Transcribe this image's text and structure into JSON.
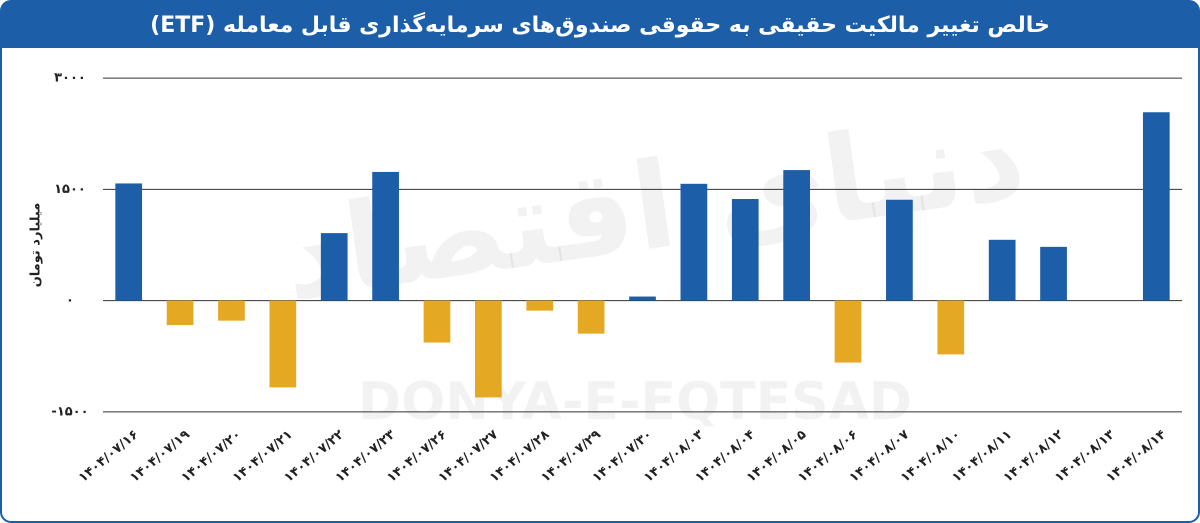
{
  "chart_data": {
    "type": "bar",
    "title": "خالص تغییر مالکیت حقیقی به حقوقی صندوق‌های سرمایه‌گذاری قابل معامله (ETF)",
    "y_label": "میلیارد تومان",
    "watermark": [
      "دنیای اقتصاد",
      "DONYA-E-EQTESAD"
    ],
    "categories": [
      "۱۴۰۴/۰۷/۱۶",
      "۱۴۰۴/۰۷/۱۹",
      "۱۴۰۴/۰۷/۲۰",
      "۱۴۰۴/۰۷/۲۱",
      "۱۴۰۴/۰۷/۲۲",
      "۱۴۰۴/۰۷/۲۳",
      "۱۴۰۴/۰۷/۲۶",
      "۱۴۰۴/۰۷/۲۷",
      "۱۴۰۴/۰۷/۲۸",
      "۱۴۰۴/۰۷/۲۹",
      "۱۴۰۴/۰۷/۳۰",
      "۱۴۰۴/۰۸/۰۳",
      "۱۴۰۴/۰۸/۰۴",
      "۱۴۰۴/۰۸/۰۵",
      "۱۴۰۴/۰۸/۰۶",
      "۱۴۰۴/۰۸/۰۷",
      "۱۴۰۴/۰۸/۱۰",
      "۱۴۰۴/۰۸/۱۱",
      "۱۴۰۴/۰۸/۱۲",
      "۱۴۰۴/۰۸/۱۳",
      "۱۴۰۴/۰۸/۱۴"
    ],
    "values": [
      1580,
      -330,
      -270,
      -1170,
      910,
      1735,
      -565,
      -1305,
      -135,
      -445,
      55,
      1575,
      1370,
      1760,
      -835,
      1360,
      -725,
      820,
      725,
      0,
      2540
    ],
    "positive_color": "#1c5ea8",
    "negative_color": "#e5a823",
    "ylim": [
      -1650,
      3150
    ],
    "yticks": [
      {
        "value": -1500,
        "label": "-۱۵۰۰"
      },
      {
        "value": 0,
        "label": "۰"
      },
      {
        "value": 1500,
        "label": "۱۵۰۰"
      },
      {
        "value": 3000,
        "label": "۳۰۰۰"
      }
    ],
    "grid": true
  }
}
